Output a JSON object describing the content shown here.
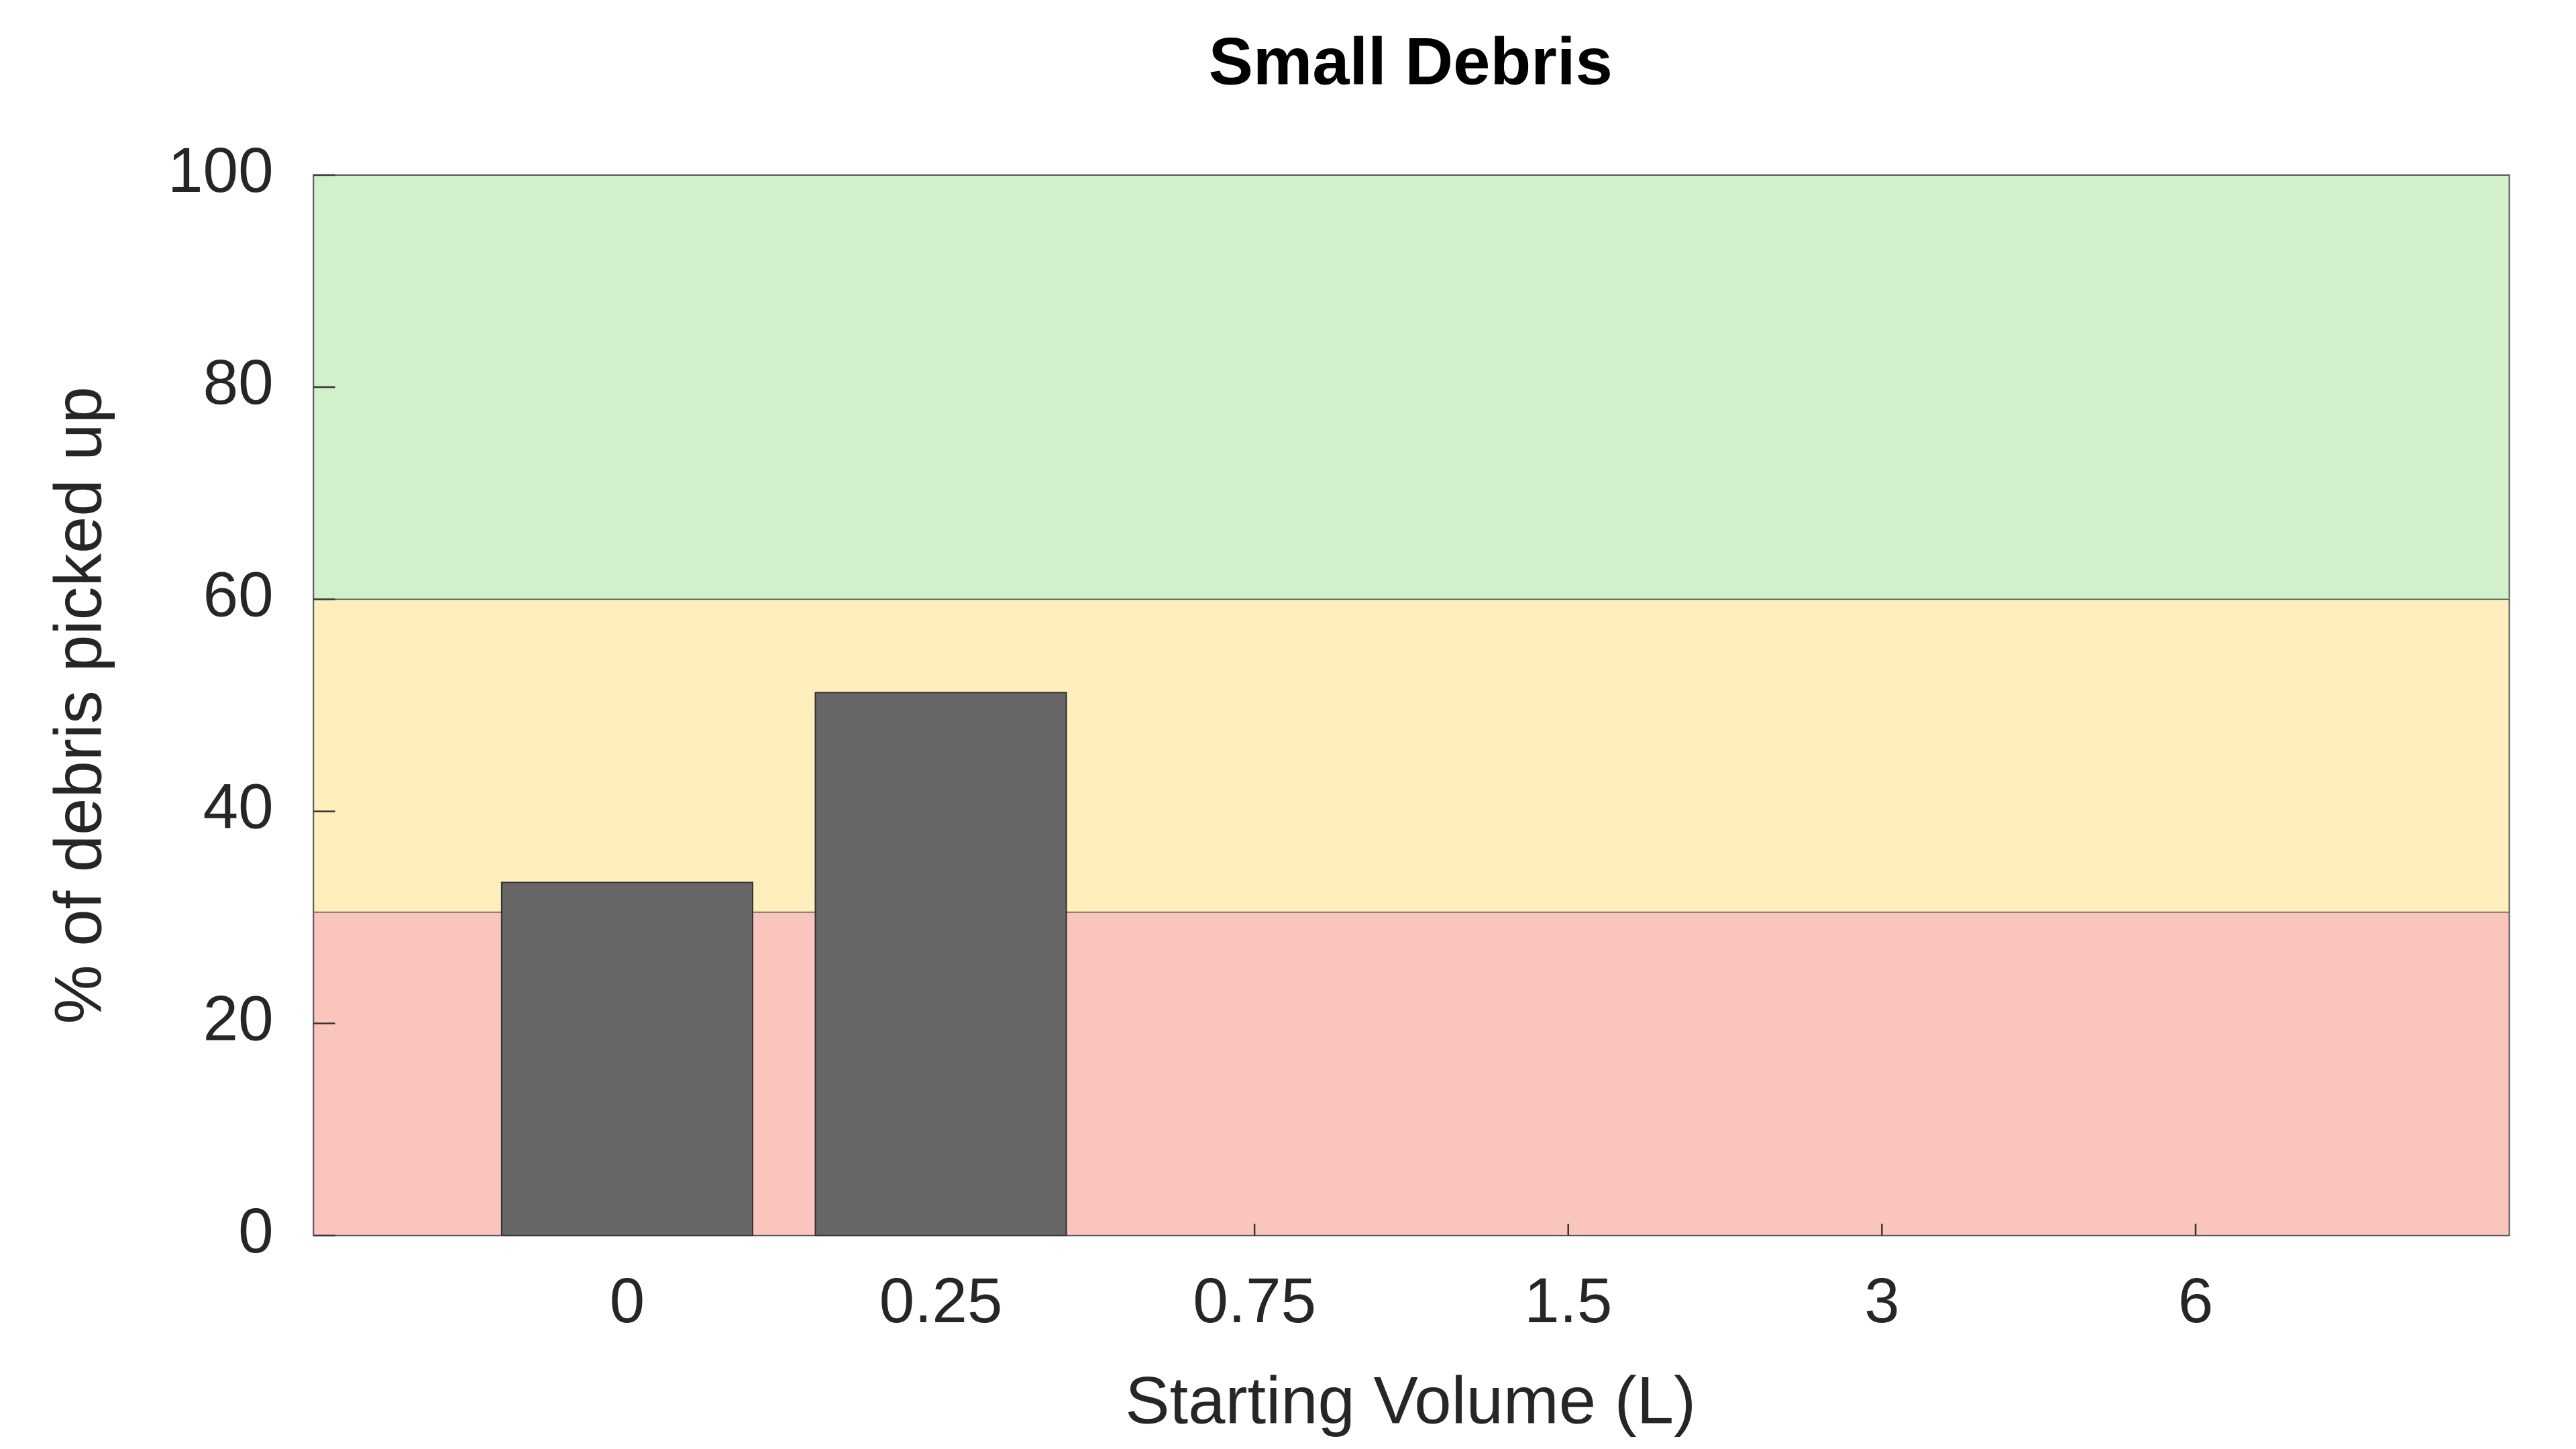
{
  "chart_data": {
    "type": "bar",
    "title": "Small Debris",
    "x_label": "Starting Volume (L)",
    "y_label": "% of debris picked up",
    "categories": [
      "0",
      "0.25",
      "0.75",
      "1.5",
      "3",
      "6"
    ],
    "values": [
      33.3,
      51.2,
      null,
      null,
      null,
      null
    ],
    "color": "#666666",
    "bands": [
      {
        "from": 0,
        "to": 30.5,
        "color": "#f9c5bd"
      },
      {
        "from": 30.5,
        "to": 60,
        "color": "#feefbd"
      },
      {
        "from": 60,
        "to": 100,
        "color": "#d3f0cc"
      }
    ],
    "ylim": [
      0,
      100
    ],
    "yticks": [
      0,
      20,
      40,
      60,
      80,
      100
    ],
    "grid": false
  }
}
